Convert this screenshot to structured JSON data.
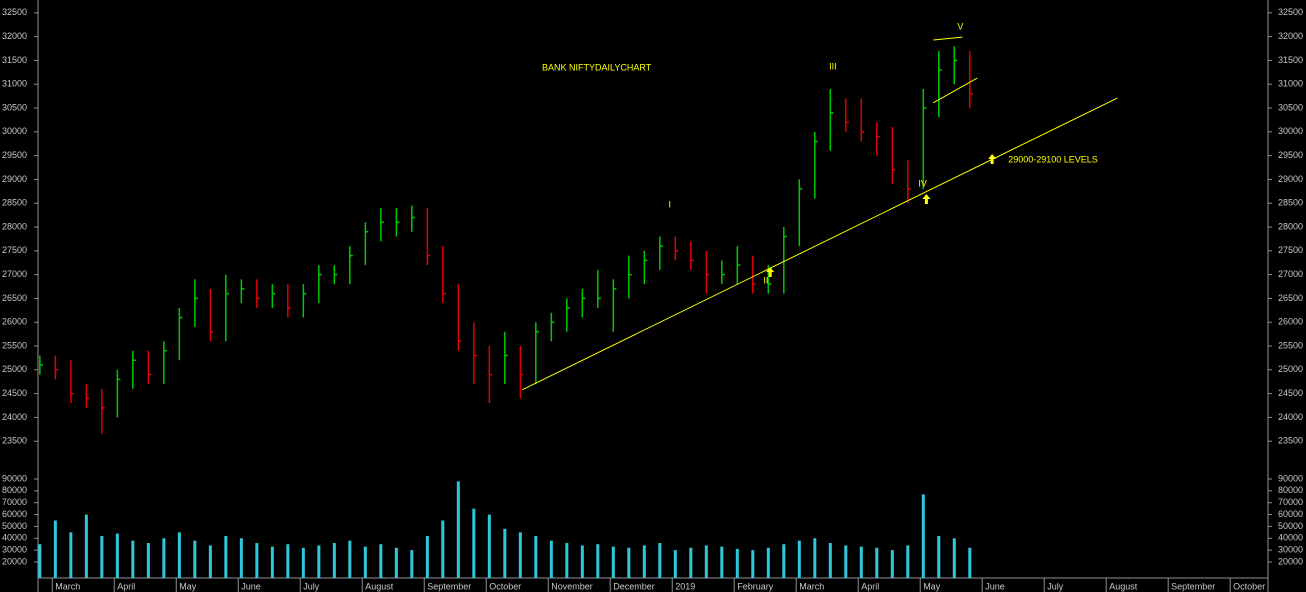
{
  "chart_data": {
    "type": "ohlc",
    "title": "BANK NIFTYDAILYCHART",
    "title_pos": {
      "x": 7.9,
      "y": 31341
    },
    "x": [
      -0.2,
      0.05,
      0.3,
      0.55,
      0.8,
      1.05,
      1.3,
      1.55,
      1.8,
      2.05,
      2.3,
      2.55,
      2.8,
      3.05,
      3.3,
      3.55,
      3.8,
      4.05,
      4.3,
      4.55,
      4.8,
      5.05,
      5.3,
      5.55,
      5.8,
      6.05,
      6.3,
      6.55,
      6.8,
      7.05,
      7.3,
      7.55,
      7.8,
      8.05,
      8.3,
      8.55,
      8.8,
      9.05,
      9.3,
      9.55,
      9.8,
      10.05,
      10.3,
      10.55,
      10.8,
      11.05,
      11.3,
      11.55,
      11.8,
      12.05,
      12.3,
      12.55,
      12.8,
      13.05,
      13.3,
      13.55,
      13.8,
      14.05,
      14.3,
      14.55,
      14.8
    ],
    "high": [
      25300,
      25300,
      25200,
      24700,
      24600,
      25000,
      25400,
      25400,
      25600,
      26300,
      26900,
      26700,
      27000,
      26900,
      26900,
      26800,
      26800,
      26800,
      27200,
      27200,
      27600,
      28100,
      28400,
      28400,
      28450,
      28400,
      27600,
      26800,
      26000,
      25500,
      25800,
      25500,
      26000,
      26200,
      26500,
      26700,
      27100,
      26900,
      27400,
      27500,
      27800,
      27800,
      27700,
      27500,
      27300,
      27600,
      27400,
      27200,
      28000,
      29000,
      30000,
      30900,
      30700,
      30700,
      30200,
      30100,
      29400,
      30900,
      31700,
      31800,
      31700
    ],
    "low": [
      24900,
      24800,
      24300,
      24200,
      23650,
      24000,
      24600,
      24700,
      24700,
      25200,
      25900,
      25600,
      25600,
      26400,
      26300,
      26300,
      26100,
      26100,
      26400,
      26800,
      26800,
      27200,
      27700,
      27800,
      27900,
      27200,
      26400,
      25400,
      24700,
      24300,
      24700,
      24400,
      24700,
      25600,
      25800,
      26100,
      26300,
      25800,
      26500,
      26800,
      27100,
      27300,
      27100,
      26600,
      26800,
      26800,
      26600,
      26600,
      26600,
      27600,
      28600,
      29600,
      30000,
      29800,
      29500,
      28900,
      28500,
      28800,
      30300,
      31000,
      30500
    ],
    "close": [
      25100,
      25000,
      24500,
      24400,
      24200,
      24800,
      25200,
      24900,
      25400,
      26100,
      26500,
      25800,
      26600,
      26700,
      26500,
      26600,
      26300,
      26600,
      27000,
      27000,
      27400,
      27900,
      28100,
      28100,
      28200,
      27400,
      26600,
      25600,
      25300,
      24900,
      25300,
      24900,
      25800,
      26000,
      26300,
      26500,
      26500,
      26700,
      27000,
      27300,
      27600,
      27500,
      27300,
      27000,
      27000,
      27200,
      26800,
      26800,
      27800,
      28800,
      29800,
      30400,
      30200,
      30000,
      29900,
      29200,
      28800,
      30500,
      31300,
      31500,
      30800
    ],
    "up_color": "#00c800",
    "down_color": "#e00000",
    "ylim": [
      23000,
      32770
    ],
    "yticks": [
      23500,
      24000,
      24500,
      25000,
      25500,
      26000,
      26500,
      27000,
      27500,
      28000,
      28500,
      29000,
      29500,
      30000,
      30500,
      31000,
      31500,
      32000,
      32500
    ],
    "xlim": [
      -0.23,
      19.61
    ],
    "xticks": [
      {
        "value": 0,
        "label": "March"
      },
      {
        "value": 1,
        "label": "April"
      },
      {
        "value": 2,
        "label": "May"
      },
      {
        "value": 3,
        "label": "June"
      },
      {
        "value": 4,
        "label": "July"
      },
      {
        "value": 5,
        "label": "August"
      },
      {
        "value": 6,
        "label": "September"
      },
      {
        "value": 7,
        "label": "October"
      },
      {
        "value": 8,
        "label": "November"
      },
      {
        "value": 9,
        "label": "December"
      },
      {
        "value": 10,
        "label": "2019"
      },
      {
        "value": 11,
        "label": "February"
      },
      {
        "value": 12,
        "label": "March"
      },
      {
        "value": 13,
        "label": "April"
      },
      {
        "value": 14,
        "label": "May"
      },
      {
        "value": 15,
        "label": "June"
      },
      {
        "value": 16,
        "label": "July"
      },
      {
        "value": 17,
        "label": "August"
      },
      {
        "value": 18,
        "label": "September"
      },
      {
        "value": 19,
        "label": "October"
      }
    ],
    "volume": {
      "color": "#30c8d8",
      "values": [
        35000,
        55000,
        45000,
        60000,
        42000,
        44000,
        38000,
        36000,
        40000,
        45000,
        38000,
        34000,
        42000,
        40000,
        36000,
        33000,
        35000,
        32000,
        34000,
        36000,
        38000,
        33000,
        35000,
        32000,
        30000,
        42000,
        55000,
        88000,
        65000,
        60000,
        48000,
        45000,
        42000,
        38000,
        36000,
        34000,
        35000,
        33000,
        32000,
        34000,
        36000,
        30000,
        32000,
        34000,
        33000,
        31000,
        30000,
        32000,
        35000,
        38000,
        40000,
        36000,
        34000,
        33000,
        32000,
        30000,
        34000,
        77000,
        42000,
        40000,
        32000
      ],
      "ylim": [
        6500,
        97600
      ],
      "yticks": [
        20000,
        30000,
        40000,
        50000,
        60000,
        70000,
        80000,
        90000
      ]
    },
    "line_color": "#ffff00",
    "trendlines": [
      {
        "x": [
          7.58,
          17.18
        ],
        "y": [
          24580,
          30710
        ]
      },
      {
        "x": [
          14.21,
          14.68
        ],
        "y": [
          31930,
          31990
        ]
      },
      {
        "x": [
          14.21,
          14.92
        ],
        "y": [
          30610,
          31130
        ]
      }
    ],
    "annotations": [
      {
        "text": "I",
        "x": 9.94,
        "y": 28460
      },
      {
        "text": "II",
        "x": 11.47,
        "y": 26866
      },
      {
        "text": "III",
        "x": 12.53,
        "y": 31362
      },
      {
        "text": "IV",
        "x": 13.97,
        "y": 28904
      },
      {
        "text": "V",
        "x": 14.6,
        "y": 32203
      },
      {
        "text": "29000-29100 LEVELS",
        "x": 15.42,
        "y": 29408
      }
    ],
    "arrows": [
      {
        "x": 11.58,
        "y": 27055
      },
      {
        "x": 14.1,
        "y": 28589
      },
      {
        "x": 15.16,
        "y": 29429
      }
    ]
  }
}
